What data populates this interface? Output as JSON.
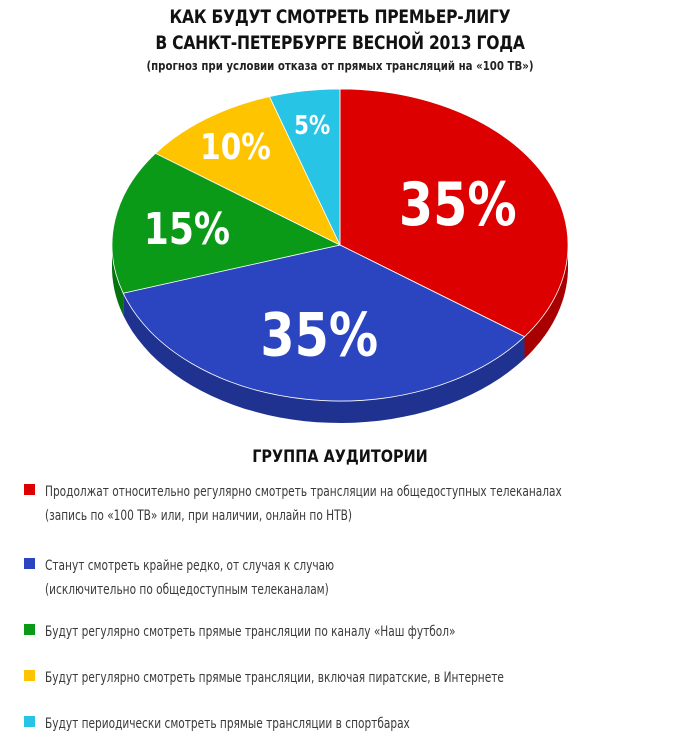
{
  "chart_data": {
    "type": "pie",
    "title_line1": "КАК БУДУТ СМОТРЕТЬ ПРЕМЬЕР-ЛИГУ",
    "title_line2": "В САНКТ-ПЕТЕРБУРГЕ ВЕСНОЙ 2013 ГОДА",
    "subtitle": "(прогноз при условии отказа от прямых трансляций на «100 ТВ»)",
    "legend_title": "ГРУППА АУДИТОРИИ",
    "slices": [
      {
        "value": 35,
        "label": "35%",
        "color": "#dd0000",
        "side": "#a80000",
        "legend": [
          "Продолжат относительно регулярно смотреть трансляции на общедоступных телеканалах",
          "(запись по «100 ТВ» или, при наличии, онлайн по НТВ)"
        ]
      },
      {
        "value": 35,
        "label": "35%",
        "color": "#2b45c0",
        "side": "#1f3290",
        "legend": [
          "Станут смотреть крайне редко, от случая к случаю",
          "(исключительно по общедоступным телеканалам)"
        ]
      },
      {
        "value": 15,
        "label": "15%",
        "color": "#0b9a18",
        "side": "#077010",
        "legend": [
          "Будут регулярно смотреть прямые трансляции по каналу «Наш футбол»"
        ]
      },
      {
        "value": 10,
        "label": "10%",
        "color": "#ffc400",
        "side": "#d09e00",
        "legend": [
          "Будут регулярно смотреть прямые трансляции, включая пиратские, в Интернете"
        ]
      },
      {
        "value": 5,
        "label": "5%",
        "color": "#27c4e6",
        "side": "#1a95b0",
        "legend": [
          "Будут периодически смотреть прямые трансляции в спортбарах"
        ]
      }
    ]
  }
}
